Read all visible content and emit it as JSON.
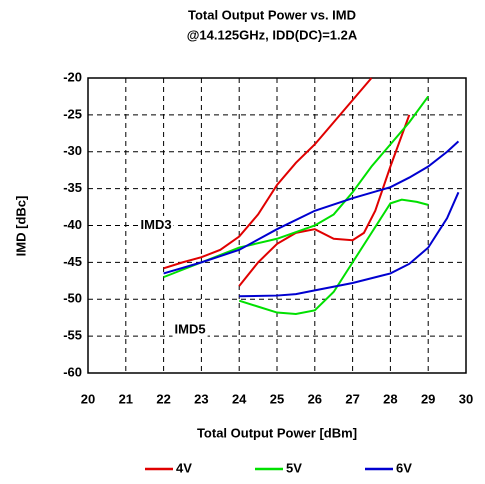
{
  "chart_data": {
    "type": "line",
    "title": [
      "Total Output Power vs. IMD",
      "@14.125GHz, IDD(DC)=1.2A"
    ],
    "xlabel": "Total Output Power [dBm]",
    "ylabel": "IMD [dBc]",
    "xlim": [
      20,
      30
    ],
    "xticks": [
      20,
      21,
      22,
      23,
      24,
      25,
      26,
      27,
      28,
      29,
      30
    ],
    "ylim": [
      -60,
      -20
    ],
    "yticks": [
      -60,
      -55,
      -50,
      -45,
      -40,
      -35,
      -30,
      -25,
      -20
    ],
    "grid": true,
    "legend": "bottom",
    "annotations": [
      {
        "text": "IMD3",
        "x": 21.8,
        "y": -40
      },
      {
        "text": "IMD5",
        "x": 22.7,
        "y": -54.2
      }
    ],
    "series": [
      {
        "name": "4V",
        "color": "#e00000",
        "curves": [
          {
            "x": [
              22,
              22.5,
              23,
              23.5,
              24,
              24.5,
              25,
              25.5,
              26,
              26.5,
              27,
              27.5
            ],
            "values": [
              -45.8,
              -45,
              -44.3,
              -43.3,
              -41.5,
              -38.5,
              -34.5,
              -31.5,
              -29,
              -26,
              -23,
              -20
            ]
          },
          {
            "x": [
              24,
              24.5,
              25,
              25.5,
              26,
              26.5,
              27,
              27.3,
              27.6,
              28,
              28.5
            ],
            "values": [
              -48.2,
              -45,
              -42.5,
              -41,
              -40.5,
              -41.8,
              -42,
              -41,
              -38,
              -32,
              -25
            ]
          }
        ]
      },
      {
        "name": "5V",
        "color": "#00e000",
        "curves": [
          {
            "x": [
              22,
              23,
              24,
              25,
              26,
              26.5,
              27,
              27.5,
              28,
              28.5,
              29
            ],
            "values": [
              -47,
              -45,
              -43,
              -41.8,
              -40,
              -38.5,
              -35.5,
              -32,
              -29,
              -26,
              -22.5
            ]
          },
          {
            "x": [
              24,
              24.5,
              25,
              25.5,
              26,
              26.5,
              27,
              27.5,
              28,
              28.3,
              28.7,
              29
            ],
            "values": [
              -50.2,
              -51,
              -51.8,
              -52,
              -51.5,
              -49,
              -45,
              -41,
              -37,
              -36.5,
              -36.8,
              -37.2
            ]
          }
        ]
      },
      {
        "name": "6V",
        "color": "#0000d0",
        "curves": [
          {
            "x": [
              22,
              23,
              24,
              25,
              26,
              27,
              28,
              28.5,
              29,
              29.5,
              29.8
            ],
            "values": [
              -46.5,
              -45,
              -43.3,
              -40.5,
              -38,
              -36.3,
              -34.8,
              -33.5,
              -32,
              -30,
              -28.6
            ]
          },
          {
            "x": [
              24,
              25,
              25.5,
              26,
              27,
              28,
              28.5,
              29,
              29.5,
              29.8
            ],
            "values": [
              -49.6,
              -49.5,
              -49.3,
              -48.8,
              -47.8,
              -46.5,
              -45.2,
              -43,
              -39,
              -35.5
            ]
          }
        ]
      }
    ]
  }
}
